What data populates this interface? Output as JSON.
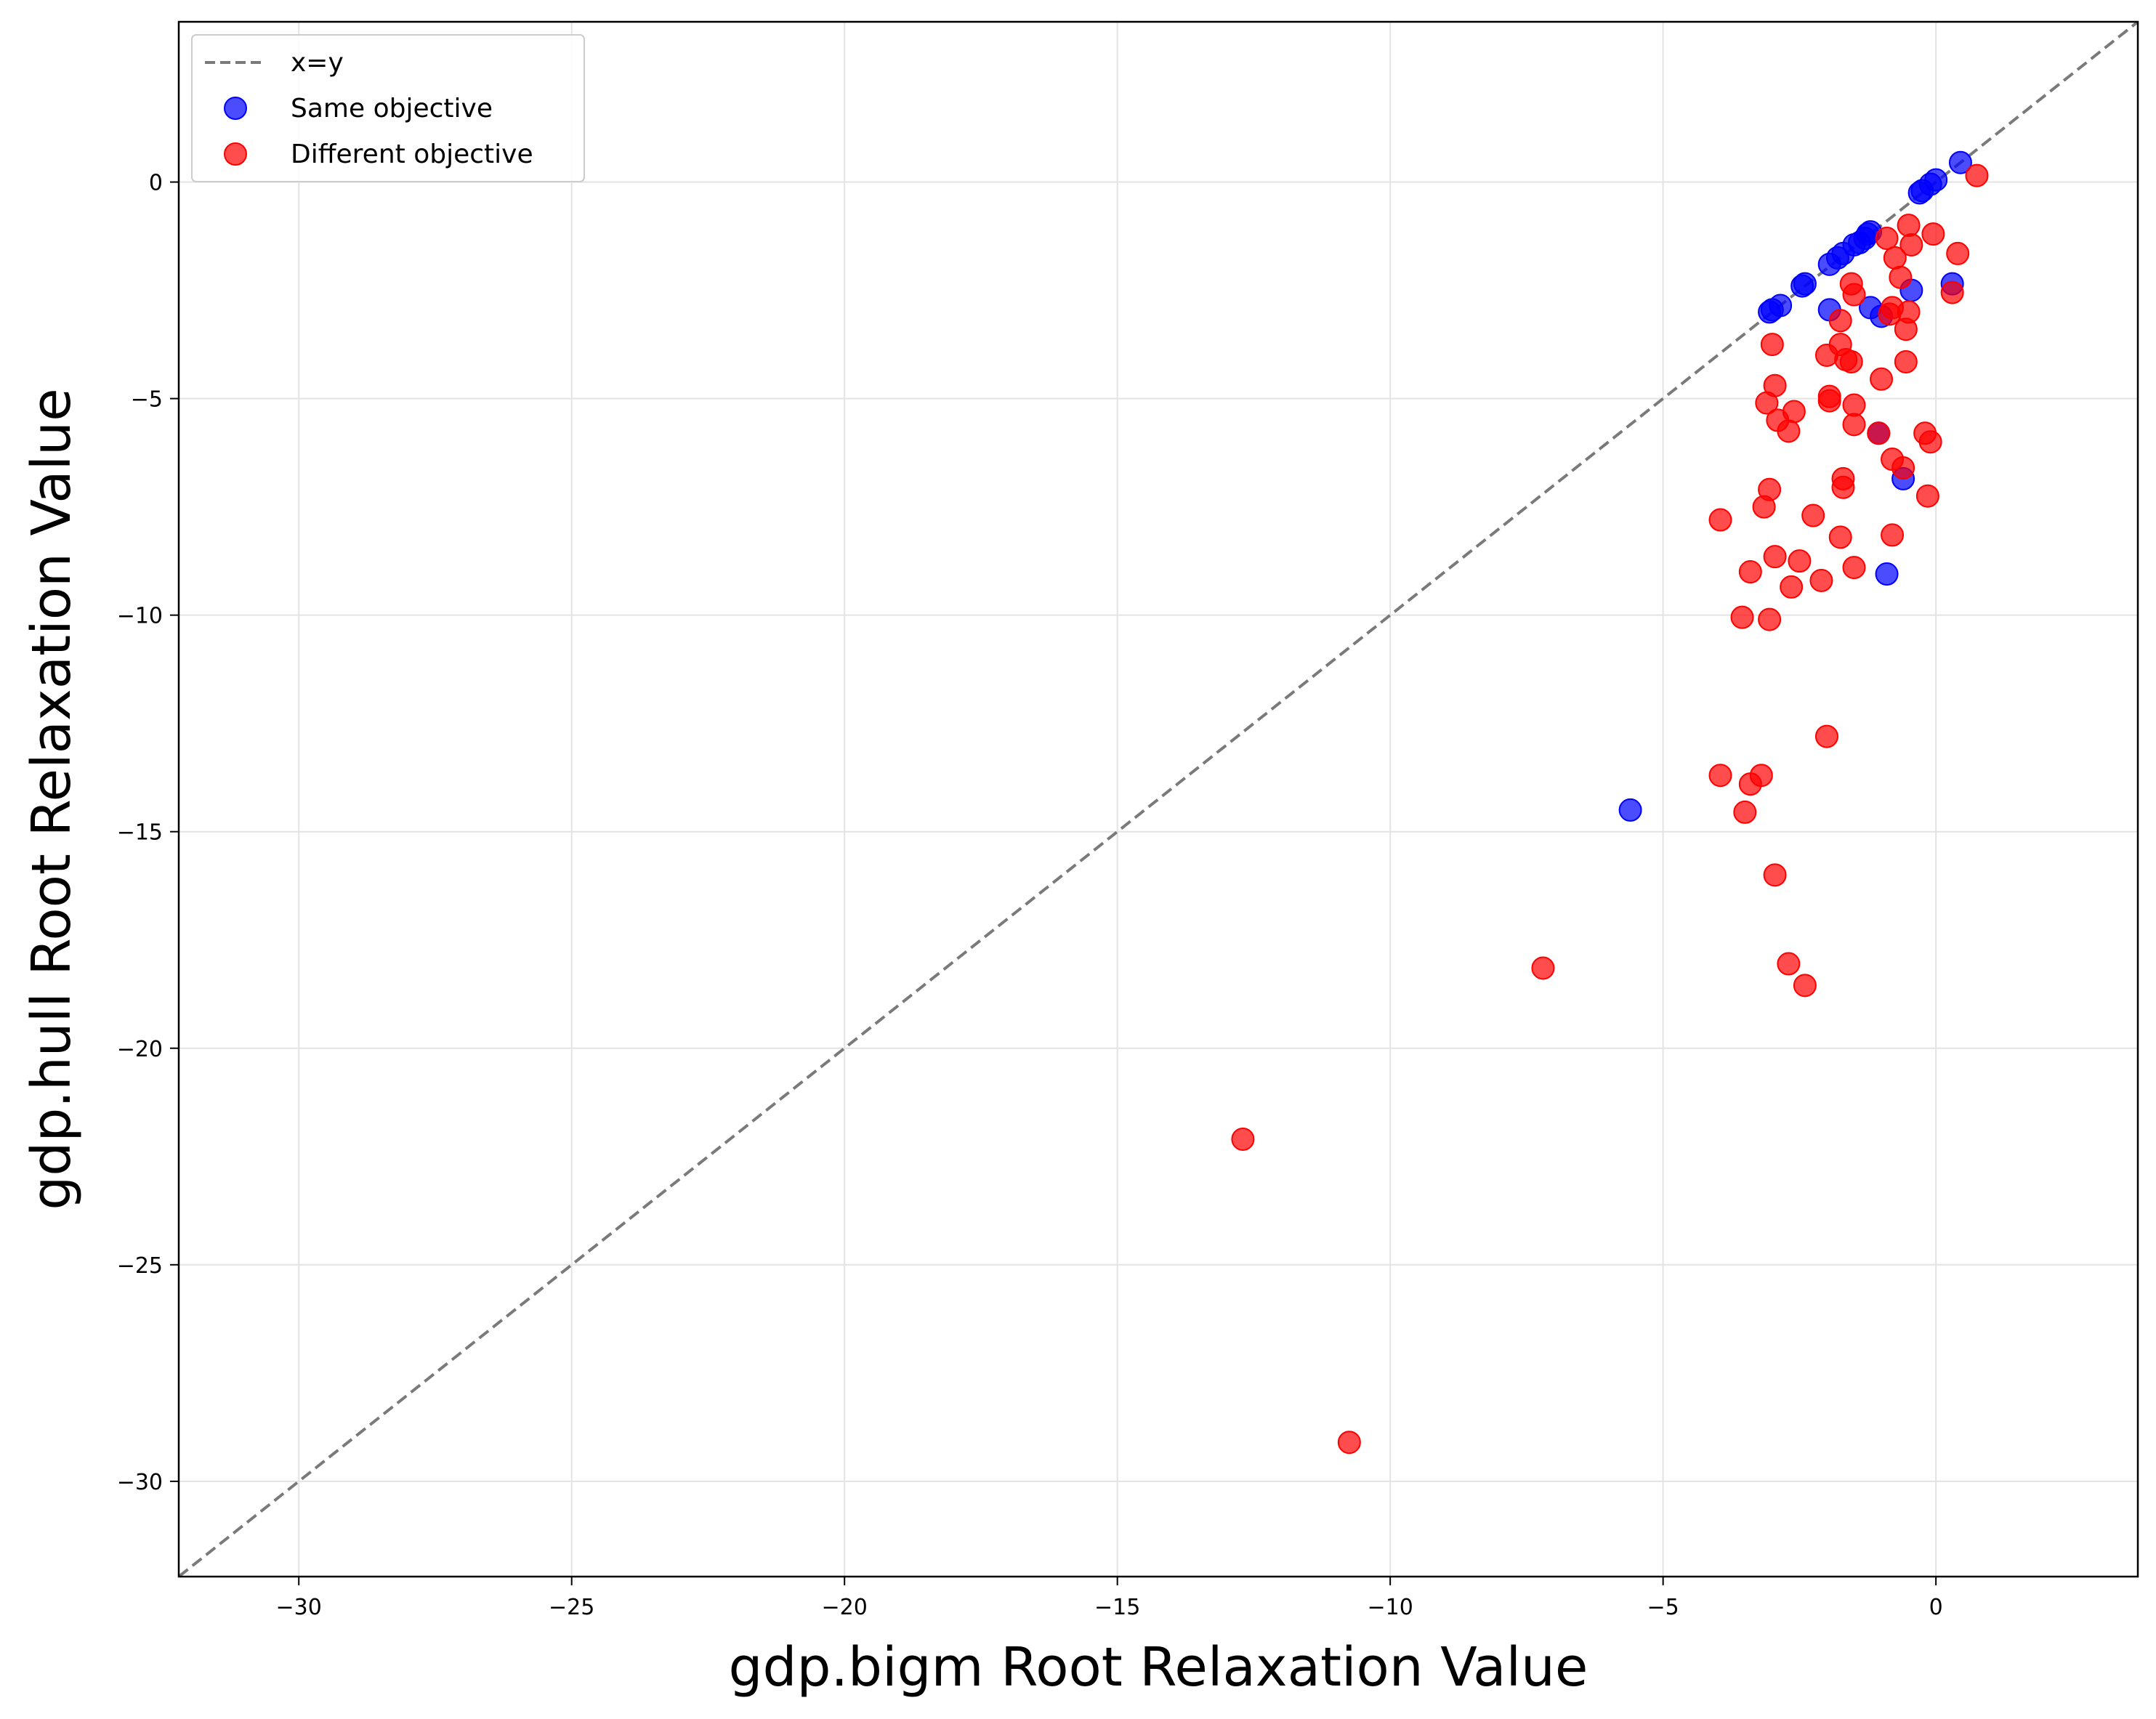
{
  "chart_data": {
    "type": "scatter",
    "title": "",
    "xlabel": "gdp.bigm Root Relaxation Value",
    "ylabel": "gdp.hull Root Relaxation Value",
    "xlim": [
      -32.2,
      3.7
    ],
    "ylim": [
      -32.2,
      3.7
    ],
    "x_ticks": [
      -30,
      -25,
      -20,
      -15,
      -10,
      -5,
      0
    ],
    "y_ticks": [
      0,
      -5,
      -10,
      -15,
      -20,
      -25,
      -30
    ],
    "x_tick_labels": [
      "−30",
      "−25",
      "−20",
      "−15",
      "−10",
      "−5",
      "0"
    ],
    "y_tick_labels": [
      "0",
      "−5",
      "−10",
      "−15",
      "−20",
      "−25",
      "−30"
    ],
    "grid": true,
    "legend_position": "top-left",
    "reference_line": {
      "label": "x=y",
      "color": "#7a7a7a",
      "style": "dashed"
    },
    "series": [
      {
        "name": "Same objective",
        "color": "#0000ff",
        "x": [
          0.45,
          0.0,
          -0.1,
          -0.25,
          -0.3,
          -1.2,
          -1.25,
          -1.3,
          -1.4,
          -1.5,
          -1.7,
          -1.8,
          -1.95,
          -2.4,
          -2.45,
          -2.85,
          -3.0,
          -3.05,
          -1.95,
          -1.2,
          -1.0,
          -0.45,
          0.3,
          -1.05,
          -0.6,
          -0.9,
          -5.6
        ],
        "y": [
          0.45,
          0.05,
          -0.05,
          -0.2,
          -0.25,
          -1.15,
          -1.2,
          -1.3,
          -1.4,
          -1.45,
          -1.65,
          -1.75,
          -1.9,
          -2.35,
          -2.4,
          -2.85,
          -2.95,
          -3.0,
          -2.95,
          -2.9,
          -3.1,
          -2.5,
          -2.35,
          -5.8,
          -6.85,
          -9.05,
          -14.5
        ]
      },
      {
        "name": "Different objective",
        "color": "#ff0000",
        "x": [
          0.75,
          -0.5,
          -0.45,
          -0.9,
          -0.75,
          -0.65,
          -0.05,
          0.4,
          0.3,
          -0.8,
          -0.85,
          -0.5,
          -0.55,
          -1.55,
          -1.5,
          -1.75,
          -1.75,
          -1.65,
          -1.55,
          -3.0,
          -2.0,
          -1.95,
          -1.5,
          -1.5,
          -1.95,
          -0.55,
          -2.95,
          -3.1,
          -2.9,
          -2.6,
          -2.7,
          -1.0,
          -0.2,
          -0.1,
          -1.05,
          -0.8,
          -0.6,
          -1.7,
          -1.7,
          -0.15,
          -3.05,
          -3.15,
          -2.25,
          -3.95,
          -0.8,
          -1.75,
          -2.95,
          -2.5,
          -1.5,
          -3.4,
          -2.65,
          -2.1,
          -3.55,
          -3.05,
          -2.0,
          -3.95,
          -3.2,
          -3.4,
          -3.5,
          -2.95,
          -7.2,
          -2.7,
          -2.4,
          -12.7,
          -10.75
        ],
        "y": [
          0.15,
          -1.0,
          -1.45,
          -1.3,
          -1.75,
          -2.2,
          -1.2,
          -1.65,
          -2.55,
          -2.9,
          -3.05,
          -3.0,
          -3.4,
          -2.35,
          -2.6,
          -3.2,
          -3.75,
          -4.1,
          -4.15,
          -3.75,
          -4.0,
          -4.95,
          -5.15,
          -5.6,
          -5.05,
          -4.15,
          -4.7,
          -5.1,
          -5.5,
          -5.3,
          -5.75,
          -4.55,
          -5.8,
          -6.0,
          -5.8,
          -6.4,
          -6.6,
          -6.85,
          -7.05,
          -7.25,
          -7.1,
          -7.5,
          -7.7,
          -7.8,
          -8.15,
          -8.2,
          -8.65,
          -8.75,
          -8.9,
          -9.0,
          -9.35,
          -9.2,
          -10.05,
          -10.1,
          -12.8,
          -13.7,
          -13.7,
          -13.9,
          -14.55,
          -16.0,
          -18.15,
          -18.05,
          -18.55,
          -22.1,
          -29.1
        ]
      }
    ]
  }
}
